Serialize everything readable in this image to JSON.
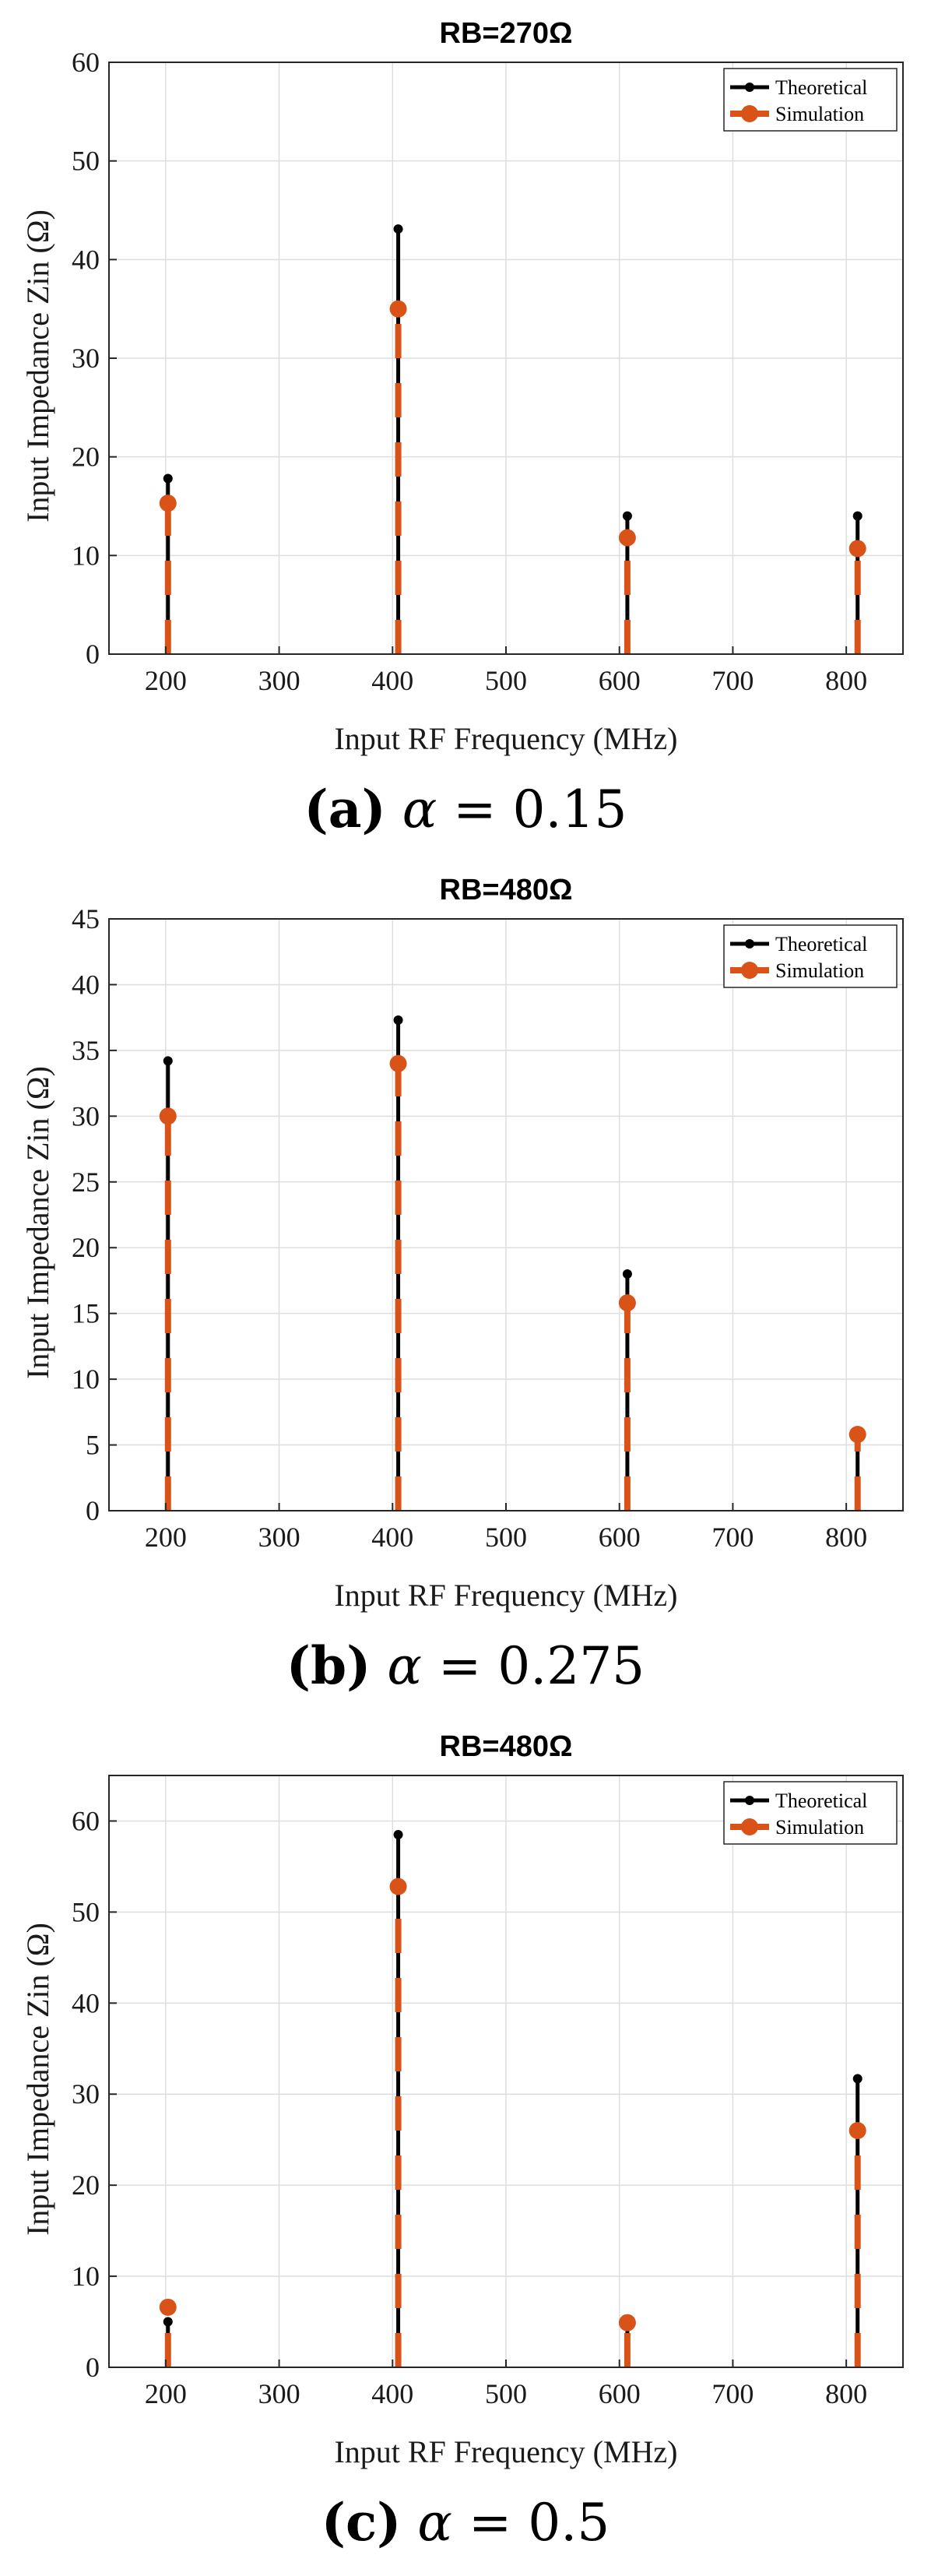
{
  "chart_data": [
    {
      "type": "stem",
      "title": "RB=270Ω",
      "xlabel": "Input RF Frequency (MHz)",
      "ylabel": "Input Impedance Zin (Ω)",
      "xlim": [
        150,
        850
      ],
      "ylim": [
        0,
        60
      ],
      "xticks": [
        200,
        300,
        400,
        500,
        600,
        700,
        800
      ],
      "yticks": [
        0,
        10,
        20,
        30,
        40,
        50,
        60
      ],
      "grid": true,
      "legend": "top-right",
      "series": [
        {
          "name": "Theoretical",
          "color": "#000000",
          "x": [
            202,
            405,
            607,
            810
          ],
          "y": [
            17.8,
            43.1,
            14.0,
            14.0
          ]
        },
        {
          "name": "Simulation",
          "color": "#d95319",
          "x": [
            202,
            405,
            607,
            810
          ],
          "y": [
            15.3,
            35.0,
            11.8,
            10.7
          ]
        }
      ],
      "caption": {
        "label": "(a)",
        "alpha": "α",
        "eq": " = 0.15"
      }
    },
    {
      "type": "stem",
      "title": "RB=480Ω",
      "xlabel": "Input RF Frequency (MHz)",
      "ylabel": "Input Impedance Zin (Ω)",
      "xlim": [
        150,
        850
      ],
      "ylim": [
        0,
        45
      ],
      "xticks": [
        200,
        300,
        400,
        500,
        600,
        700,
        800
      ],
      "yticks": [
        0,
        5,
        10,
        15,
        20,
        25,
        30,
        35,
        40,
        45
      ],
      "grid": true,
      "legend": "top-right",
      "series": [
        {
          "name": "Theoretical",
          "color": "#000000",
          "x": [
            202,
            405,
            607,
            810
          ],
          "y": [
            34.2,
            37.3,
            18.0,
            5.5
          ]
        },
        {
          "name": "Simulation",
          "color": "#d95319",
          "x": [
            202,
            405,
            607,
            810
          ],
          "y": [
            30.0,
            34.0,
            15.8,
            5.8
          ]
        }
      ],
      "caption": {
        "label": "(b)",
        "alpha": "α",
        "eq": " = 0.275"
      }
    },
    {
      "type": "stem",
      "title": "RB=480Ω",
      "xlabel": "Input RF Frequency (MHz)",
      "ylabel": "Input Impedance Zin (Ω)",
      "xlim": [
        150,
        850
      ],
      "ylim": [
        0,
        65
      ],
      "xticks": [
        200,
        300,
        400,
        500,
        600,
        700,
        800
      ],
      "yticks": [
        0,
        10,
        20,
        30,
        40,
        50,
        60
      ],
      "grid": true,
      "legend": "top-right",
      "series": [
        {
          "name": "Theoretical",
          "color": "#000000",
          "x": [
            202,
            405,
            607,
            810
          ],
          "y": [
            5.0,
            58.5,
            5.0,
            31.7
          ]
        },
        {
          "name": "Simulation",
          "color": "#d95319",
          "x": [
            202,
            405,
            607,
            810
          ],
          "y": [
            6.6,
            52.8,
            4.9,
            26.0
          ]
        }
      ],
      "caption": {
        "label": "(c)",
        "alpha": "α",
        "eq": " = 0.5"
      }
    }
  ]
}
